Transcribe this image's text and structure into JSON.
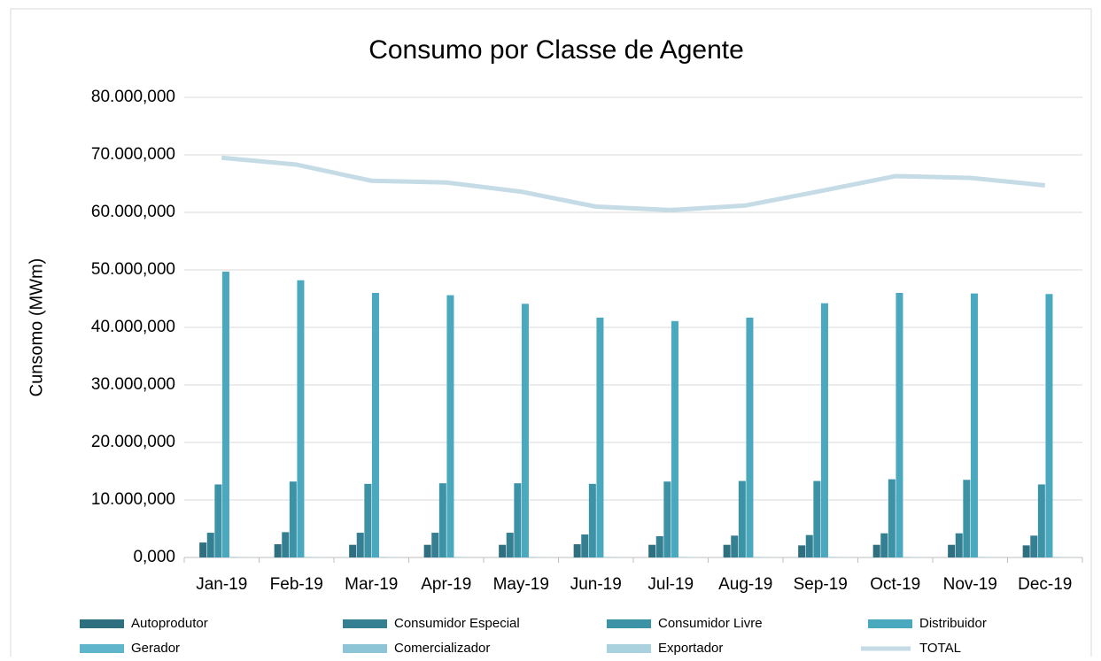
{
  "chart_data": {
    "type": "bar",
    "title": "Consumo por Classe de Agente",
    "y_label": "Cunsomo (MWm)",
    "categories": [
      "Jan-19",
      "Feb-19",
      "Mar-19",
      "Apr-19",
      "May-19",
      "Jun-19",
      "Jul-19",
      "Aug-19",
      "Sep-19",
      "Oct-19",
      "Nov-19",
      "Dec-19"
    ],
    "series": [
      {
        "name": "Autoprodutor",
        "color": "#2e6f80",
        "values": [
          2.6,
          2.3,
          2.2,
          2.2,
          2.2,
          2.3,
          2.2,
          2.2,
          2.1,
          2.2,
          2.2,
          2.1
        ]
      },
      {
        "name": "Consumidor Especial",
        "color": "#347f91",
        "values": [
          4.3,
          4.4,
          4.3,
          4.3,
          4.3,
          4.0,
          3.7,
          3.8,
          3.9,
          4.2,
          4.2,
          3.8
        ]
      },
      {
        "name": "Consumidor Livre",
        "color": "#3d93a6",
        "values": [
          12.7,
          13.2,
          12.8,
          12.9,
          12.9,
          12.8,
          13.2,
          13.3,
          13.3,
          13.6,
          13.5,
          12.7
        ]
      },
      {
        "name": "Distribuidor",
        "color": "#4aa8bf",
        "values": [
          49.7,
          48.2,
          46.0,
          45.6,
          44.1,
          41.7,
          41.1,
          41.7,
          44.2,
          46.0,
          45.9,
          45.8
        ]
      },
      {
        "name": "Gerador",
        "color": "#5fb6cc",
        "values": [
          0.05,
          0.05,
          0.05,
          0.05,
          0.05,
          0.05,
          0.05,
          0.05,
          0.05,
          0.05,
          0.05,
          0.05
        ]
      },
      {
        "name": "Comercializador",
        "color": "#8ec5d6",
        "values": [
          0.05,
          0.05,
          0.05,
          0.05,
          0.05,
          0.05,
          0.05,
          0.05,
          0.05,
          0.05,
          0.05,
          0.05
        ]
      },
      {
        "name": "Exportador",
        "color": "#a9d1de",
        "values": [
          0.02,
          0.02,
          0.02,
          0.02,
          0.02,
          0.02,
          0.02,
          0.02,
          0.02,
          0.02,
          0.02,
          0.02
        ]
      },
      {
        "name": "TOTAL",
        "color": "#c5dbe6",
        "type": "line",
        "values": [
          69.5,
          68.3,
          65.5,
          65.2,
          63.6,
          61.0,
          60.4,
          61.2,
          63.7,
          66.3,
          66.0,
          64.7
        ]
      }
    ],
    "ylim": [
      0,
      80
    ],
    "yticks": [
      {
        "value": 0,
        "label": "0,000"
      },
      {
        "value": 10,
        "label": "10.000,000"
      },
      {
        "value": 20,
        "label": "20.000,000"
      },
      {
        "value": 30,
        "label": "30.000,000"
      },
      {
        "value": 40,
        "label": "40.000,000"
      },
      {
        "value": 50,
        "label": "50.000,000"
      },
      {
        "value": 60,
        "label": "60.000,000"
      },
      {
        "value": 70,
        "label": "70.000,000"
      },
      {
        "value": 80,
        "label": "80.000,000"
      }
    ],
    "grid": true,
    "legend": "bottom"
  }
}
